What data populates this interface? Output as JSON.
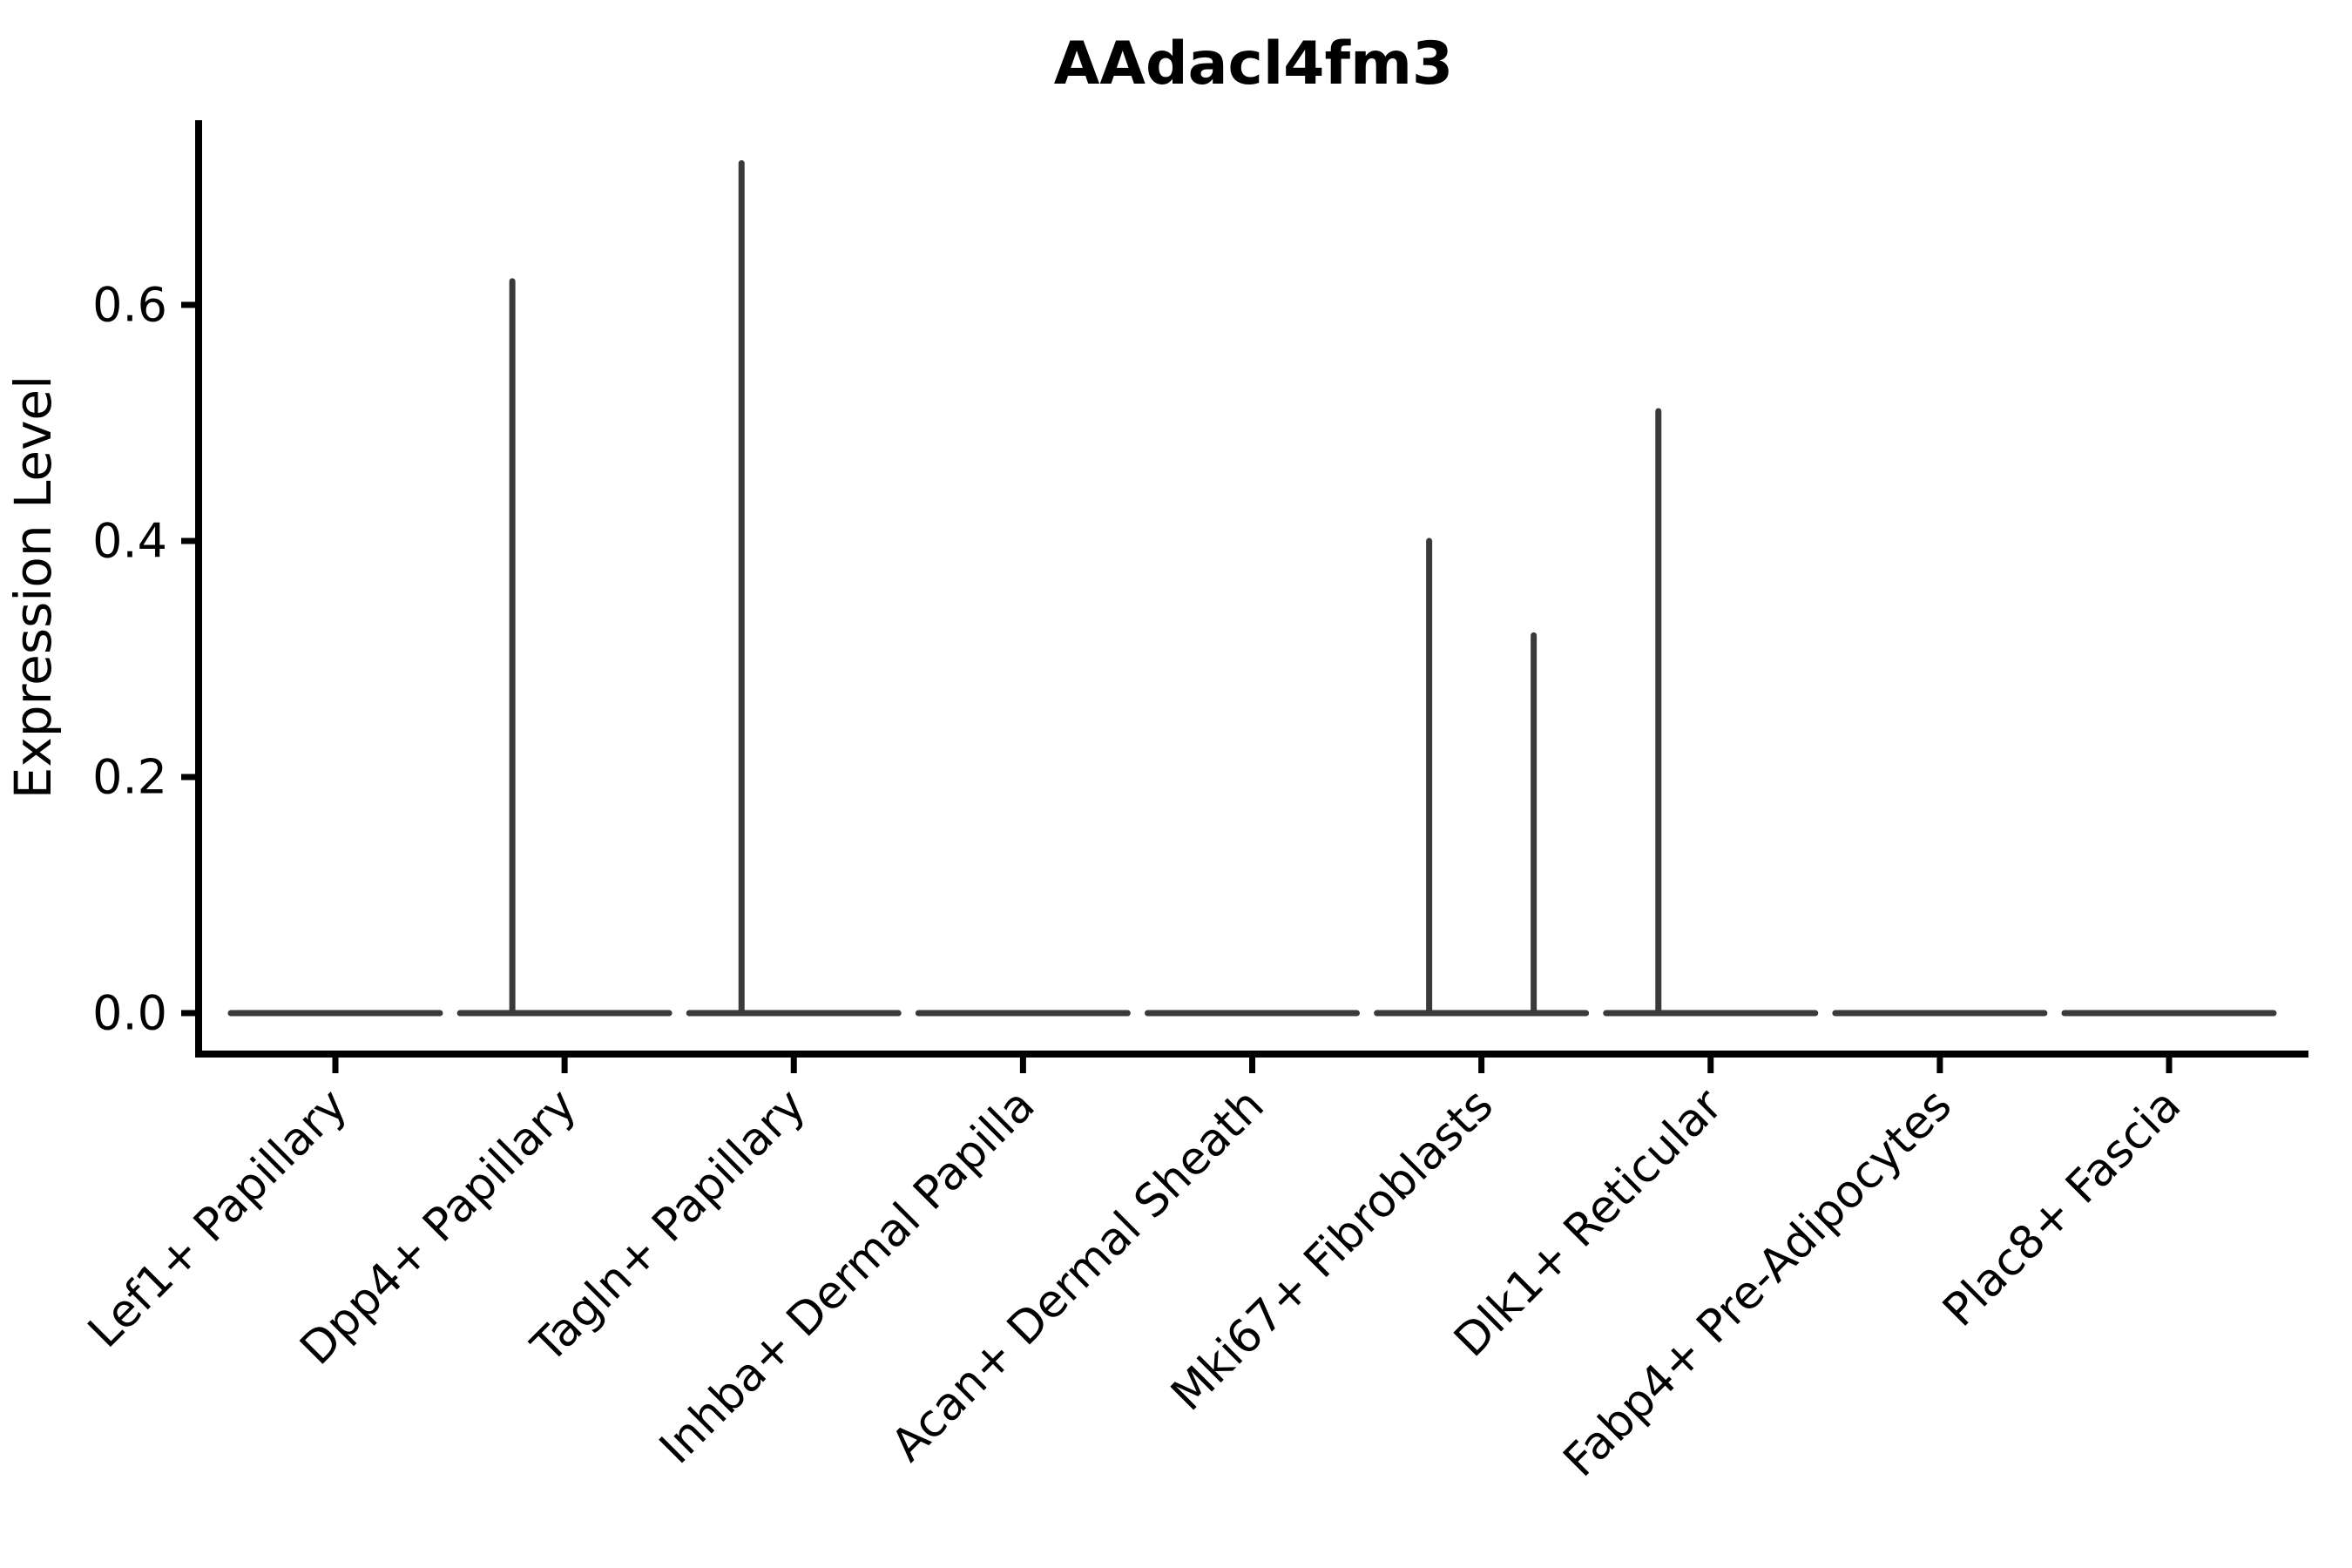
{
  "figure": {
    "background_color": "#ffffff",
    "text_color": "#000000",
    "axis_color": "#000000",
    "violin_line_color": "#3a3a3a"
  },
  "chart_data": {
    "type": "violin",
    "title": "AAdacl4fm3",
    "xlabel": "",
    "ylabel": "Expression Level",
    "grid": false,
    "legend": "none",
    "ylim": [
      -0.035,
      0.756
    ],
    "yticks": [
      "0.0",
      "0.2",
      "0.4",
      "0.6"
    ],
    "ytick_values": [
      0.0,
      0.2,
      0.4,
      0.6
    ],
    "categories": [
      "Lef1+ Papillary",
      "Dpp4+ Papillary",
      "Tagln+ Papillary",
      "Inhba+ Dermal Papilla",
      "Acan+ Dermal Sheath",
      "Mki67+ Fibroblasts",
      "Dlk1+ Reticular",
      "Fabp4+ Pre-Adipocytes",
      "Plac8+ Fascia"
    ],
    "violins": [
      {
        "category": "Lef1+ Papillary",
        "baseline_value": 0.0,
        "spikes": []
      },
      {
        "category": "Dpp4+ Papillary",
        "baseline_value": 0.0,
        "spikes": [
          {
            "side": "left",
            "value": 0.62
          }
        ]
      },
      {
        "category": "Tagln+ Papillary",
        "baseline_value": 0.0,
        "spikes": [
          {
            "side": "left",
            "value": 0.72
          }
        ]
      },
      {
        "category": "Inhba+ Dermal Papilla",
        "baseline_value": 0.0,
        "spikes": []
      },
      {
        "category": "Acan+ Dermal Sheath",
        "baseline_value": 0.0,
        "spikes": []
      },
      {
        "category": "Mki67+ Fibroblasts",
        "baseline_value": 0.0,
        "spikes": [
          {
            "side": "left",
            "value": 0.4
          },
          {
            "side": "right",
            "value": 0.32
          }
        ]
      },
      {
        "category": "Dlk1+ Reticular",
        "baseline_value": 0.0,
        "spikes": [
          {
            "side": "left",
            "value": 0.51
          }
        ]
      },
      {
        "category": "Fabp4+ Pre-Adipocytes",
        "baseline_value": 0.0,
        "spikes": []
      },
      {
        "category": "Plac8+ Fascia",
        "baseline_value": 0.0,
        "spikes": []
      }
    ]
  }
}
